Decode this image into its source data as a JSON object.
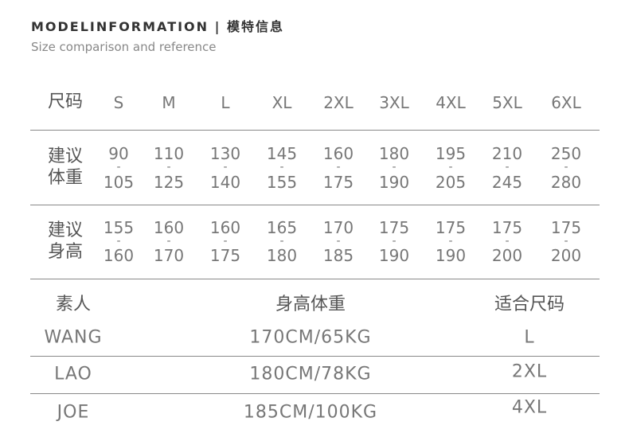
{
  "header": {
    "title": "MODELINFORMATION  |  模特信息",
    "subtitle": "Size comparison and reference"
  },
  "size_table": {
    "size_label": "尺码",
    "sizes": [
      "S",
      "M",
      "L",
      "XL",
      "2XL",
      "3XL",
      "4XL",
      "5XL",
      "6XL"
    ],
    "weight_label": "建议\n体重",
    "weight": [
      [
        "90",
        "105"
      ],
      [
        "110",
        "125"
      ],
      [
        "130",
        "140"
      ],
      [
        "145",
        "155"
      ],
      [
        "160",
        "175"
      ],
      [
        "180",
        "190"
      ],
      [
        "195",
        "205"
      ],
      [
        "210",
        "245"
      ],
      [
        "250",
        "280"
      ]
    ],
    "height_label": "建议\n身高",
    "height": [
      [
        "155",
        "160"
      ],
      [
        "160",
        "170"
      ],
      [
        "160",
        "175"
      ],
      [
        "165",
        "180"
      ],
      [
        "170",
        "185"
      ],
      [
        "175",
        "190"
      ],
      [
        "175",
        "190"
      ],
      [
        "175",
        "200"
      ],
      [
        "175",
        "200"
      ]
    ],
    "separator": "-"
  },
  "model_table": {
    "headers": [
      "素人",
      "身高体重",
      "适合尺码"
    ],
    "rows": [
      [
        "WANG",
        "170CM/65KG",
        "L"
      ],
      [
        "LAO",
        "180CM/78KG",
        "2XL"
      ],
      [
        "JOE",
        "185CM/100KG",
        "4XL"
      ]
    ]
  }
}
